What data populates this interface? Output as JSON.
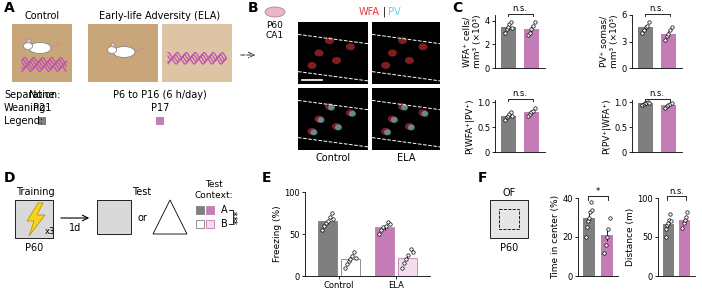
{
  "panel_labels": [
    "A",
    "B",
    "C",
    "D",
    "E",
    "F"
  ],
  "panel_A": {
    "groups": [
      "Control",
      "Early-life Adversity (ELA)"
    ],
    "row_labels": [
      "Separation:",
      "Weaning:",
      "Legend:"
    ],
    "separation": [
      "None",
      "P6 to P16 (6 h/day)"
    ],
    "weaning": [
      "P21",
      "P17"
    ],
    "legend_colors": [
      "#7f7f7f",
      "#c47cb6"
    ]
  },
  "panel_B": {
    "age": "P60",
    "region": "CA1",
    "stains": [
      {
        "name": "WFA",
        "color": "#e8383d"
      },
      {
        "name": "PV",
        "color": "#5fd3d3"
      }
    ],
    "separator": "|",
    "columns": [
      "Control",
      "ELA"
    ]
  },
  "panel_D": {
    "training": "Training",
    "repeats": "x3",
    "age": "P60",
    "delay": "1d",
    "test": "Test",
    "or": "or",
    "context_title": "Test\nContext:"
  },
  "panel_F": {
    "arena": "OF",
    "age": "P60"
  },
  "chart_data": [
    {
      "type": "bar",
      "ylabel": "WFA⁺ cells/\nmm³ (×10³)",
      "tick_labels": "y",
      "values": [
        3.5,
        3.3
      ],
      "errors": [
        0.2,
        0.25
      ],
      "colors": [
        "#7f7f7f",
        "#c47cb6"
      ],
      "points": [
        [
          3.0,
          3.3,
          3.5,
          3.7,
          3.9,
          3.4
        ],
        [
          2.8,
          3.0,
          3.3,
          3.6,
          3.9
        ]
      ],
      "ylim": [
        0,
        4.5
      ],
      "yticks": [
        0,
        2,
        4
      ],
      "annotation": "n.s."
    },
    {
      "type": "bar",
      "ylabel": "PV⁺ somas/\nmm³ (×10³)",
      "tick_labels": "y",
      "values": [
        4.6,
        3.9
      ],
      "errors": [
        0.25,
        0.3
      ],
      "colors": [
        "#7f7f7f",
        "#c47cb6"
      ],
      "points": [
        [
          4.0,
          4.3,
          4.6,
          4.8,
          5.2
        ],
        [
          3.2,
          3.6,
          3.9,
          4.3,
          4.6
        ]
      ],
      "ylim": [
        0,
        6
      ],
      "yticks": [
        0,
        3,
        6
      ],
      "annotation": "n.s."
    },
    {
      "type": "bar",
      "ylabel": "P(WFA⁺|PV⁺)",
      "tick_labels": "y",
      "values": [
        0.73,
        0.8
      ],
      "errors": [
        0.03,
        0.03
      ],
      "colors": [
        "#7f7f7f",
        "#c47cb6"
      ],
      "points": [
        [
          0.65,
          0.7,
          0.73,
          0.76,
          0.8,
          0.72
        ],
        [
          0.72,
          0.77,
          0.8,
          0.83,
          0.88
        ]
      ],
      "ylim": [
        0,
        1.05
      ],
      "yticks": [
        0,
        0.5,
        {
          "value": 1,
          "label": "1.0"
        }
      ],
      "annotation": "n.s."
    },
    {
      "type": "bar",
      "ylabel": "P(PV⁺|WFA⁺)",
      "tick_labels": "y",
      "values": [
        0.98,
        0.94
      ],
      "errors": [
        0.01,
        0.02
      ],
      "colors": [
        "#7f7f7f",
        "#c47cb6"
      ],
      "points": [
        [
          0.95,
          0.97,
          0.98,
          0.99,
          1.0,
          0.98
        ],
        [
          0.88,
          0.92,
          0.95,
          0.97,
          0.98
        ]
      ],
      "ylim": [
        0,
        1.05
      ],
      "yticks": [
        0,
        0.5,
        {
          "value": 1,
          "label": "1.0"
        }
      ],
      "annotation": "n.s."
    },
    {
      "type": "bar",
      "ylabel": "Freezing (%)",
      "categories": [
        "Control",
        "ELA"
      ],
      "series": [
        {
          "name": "A",
          "colors": [
            "#7f7f7f",
            "#c47cb6"
          ],
          "values": [
            65,
            58
          ],
          "errors": [
            3,
            3
          ],
          "points": [
            [
              55,
              60,
              63,
              66,
              70,
              75,
              68
            ],
            [
              50,
              55,
              58,
              60,
              64,
              62
            ]
          ]
        },
        {
          "name": "B",
          "colors": [
            "#ffffff",
            "#f3dcee"
          ],
          "values": [
            20,
            22
          ],
          "errors": [
            3,
            3
          ],
          "points": [
            [
              10,
              14,
              18,
              20,
              24,
              28,
              22
            ],
            [
              10,
              15,
              20,
              25,
              32,
              28
            ]
          ]
        }
      ],
      "ylim": [
        0,
        100
      ],
      "yticks": [
        0,
        50,
        100
      ],
      "annotation": "***"
    },
    {
      "type": "bar",
      "ylabel": "Time in center (%)",
      "tick_labels": "y",
      "values": [
        30,
        21
      ],
      "errors": [
        2.5,
        3
      ],
      "colors": [
        "#7f7f7f",
        "#c47cb6"
      ],
      "points": [
        [
          20,
          25,
          28,
          30,
          33,
          38,
          34
        ],
        [
          12,
          16,
          20,
          24,
          30
        ]
      ],
      "ylim": [
        0,
        40
      ],
      "yticks": [
        0,
        20,
        40
      ],
      "annotation": "*"
    },
    {
      "type": "bar",
      "ylabel": "Distance (m)",
      "tick_labels": "y",
      "values": [
        67,
        72
      ],
      "errors": [
        4,
        4
      ],
      "colors": [
        "#7f7f7f",
        "#c47cb6"
      ],
      "points": [
        [
          50,
          60,
          65,
          68,
          72,
          80,
          70
        ],
        [
          62,
          68,
          72,
          76,
          82
        ]
      ],
      "ylim": [
        0,
        100
      ],
      "yticks": [
        0,
        50,
        100
      ],
      "annotation": "n.s."
    }
  ]
}
